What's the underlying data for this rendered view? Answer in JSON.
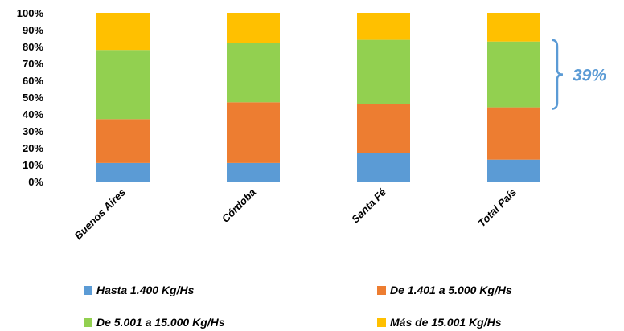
{
  "chart_data": {
    "type": "bar",
    "stacked": true,
    "percent": true,
    "categories": [
      "Buenos Aires",
      "Córdoba",
      "Santa Fé",
      "Total País"
    ],
    "series": [
      {
        "name": "Hasta 1.400 Kg/Hs",
        "color": "#5b9bd5",
        "values": [
          11,
          11,
          17,
          13
        ]
      },
      {
        "name": "De 1.401 a 5.000 Kg/Hs",
        "color": "#ed7d31",
        "values": [
          26,
          36,
          29,
          31
        ]
      },
      {
        "name": "De 5.001 a 15.000 Kg/Hs",
        "color": "#92d050",
        "values": [
          41,
          35,
          38,
          39
        ]
      },
      {
        "name": "Más de 15.001 Kg/Hs",
        "color": "#ffc000",
        "values": [
          22,
          18,
          16,
          17
        ]
      }
    ],
    "ylim": [
      0,
      100
    ],
    "yticks": [
      "0%",
      "10%",
      "20%",
      "30%",
      "40%",
      "50%",
      "60%",
      "70%",
      "80%",
      "90%",
      "100%"
    ],
    "grid": false,
    "legend_position": "bottom",
    "annotation": {
      "text": "39%",
      "color": "#5b9bd5",
      "category": "Total País",
      "series": "De 5.001 a 15.000 Kg/Hs"
    }
  }
}
